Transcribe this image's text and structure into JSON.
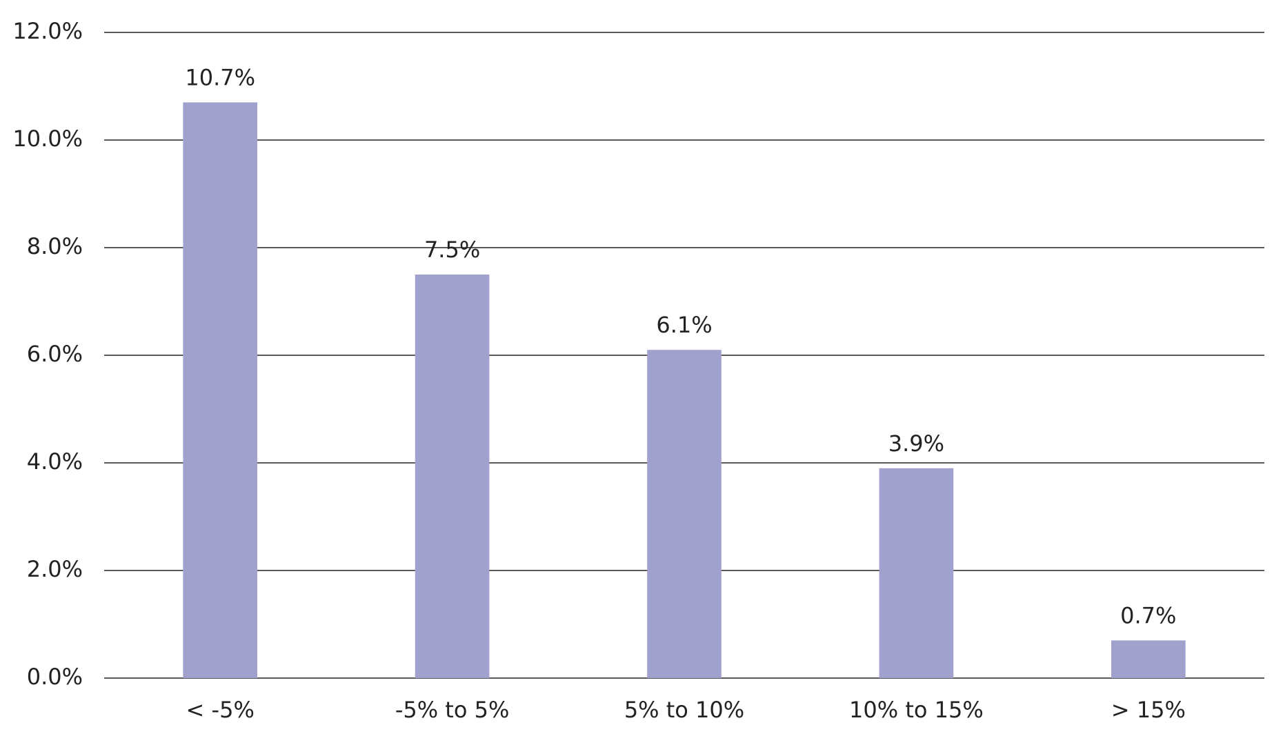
{
  "chart_data": {
    "type": "bar",
    "categories": [
      "< -5%",
      "-5% to 5%",
      "5% to 10%",
      "10% to 15%",
      "> 15%"
    ],
    "values": [
      10.7,
      7.5,
      6.1,
      3.9,
      0.7
    ],
    "value_labels": [
      "10.7%",
      "7.5%",
      "6.1%",
      "3.9%",
      "0.7%"
    ],
    "color": "#a0a1cd",
    "ylim": [
      0,
      12
    ],
    "yticks": [
      {
        "value": 0,
        "label": "0.0%"
      },
      {
        "value": 2,
        "label": "2.0%"
      },
      {
        "value": 4,
        "label": "4.0%"
      },
      {
        "value": 6,
        "label": "6.0%"
      },
      {
        "value": 8,
        "label": "8.0%"
      },
      {
        "value": 10,
        "label": "10.0%"
      },
      {
        "value": 12,
        "label": "12.0%"
      }
    ],
    "grid": true
  }
}
